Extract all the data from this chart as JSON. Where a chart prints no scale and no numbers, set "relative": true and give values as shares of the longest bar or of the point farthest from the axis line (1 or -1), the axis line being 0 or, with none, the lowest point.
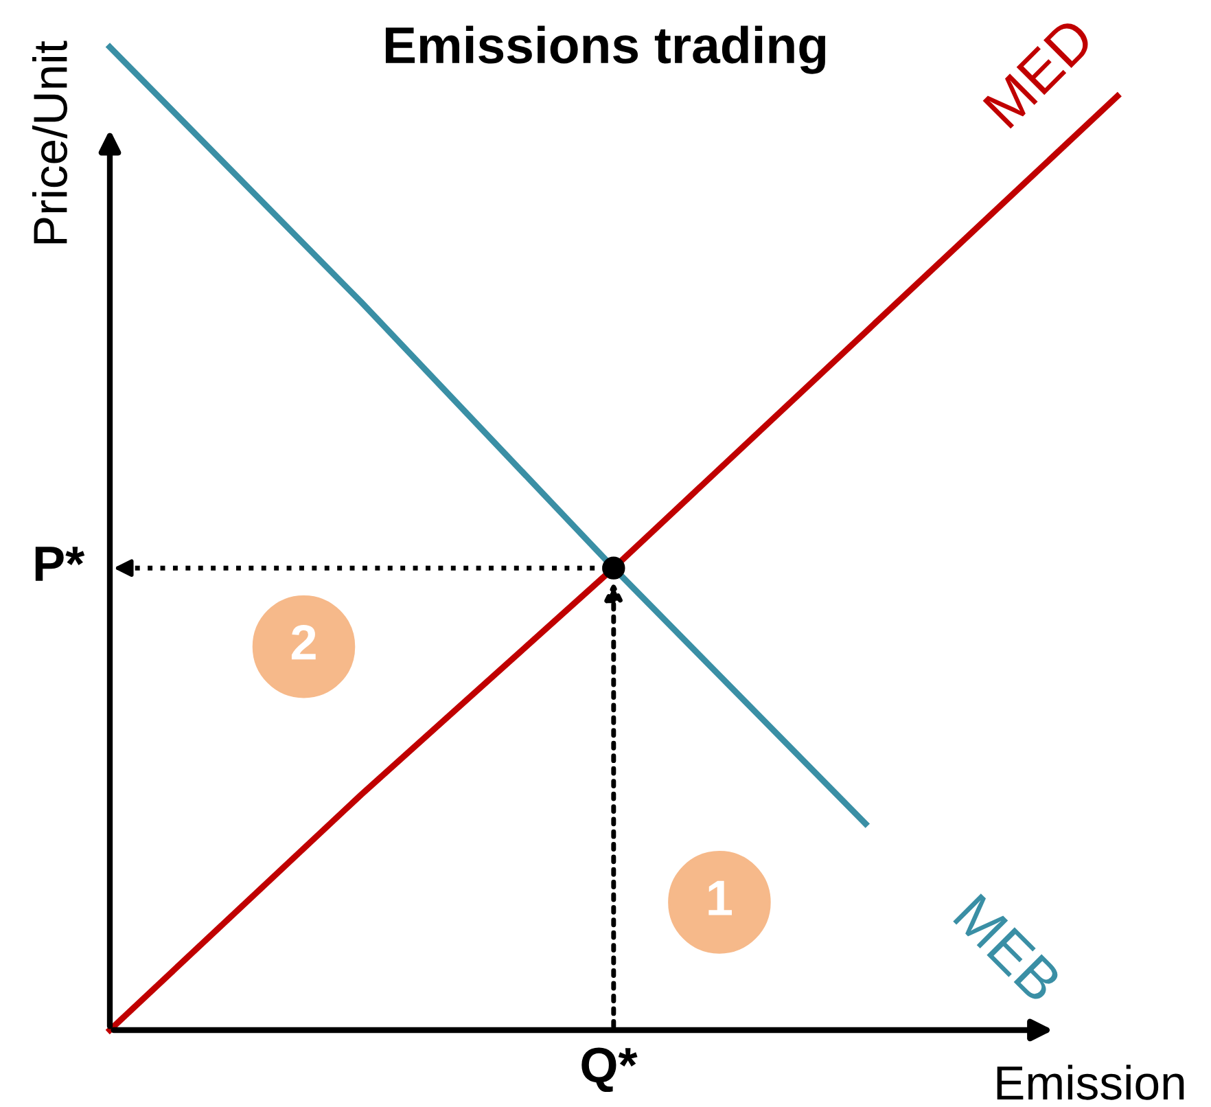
{
  "chart_data": {
    "type": "line",
    "title": "Emissions trading",
    "xlabel": "Emission",
    "ylabel": "Price/Unit",
    "relative": true,
    "tick_labels": false,
    "legend": false,
    "marker": "none",
    "line_style": "solid",
    "categories": [
      null,
      null,
      null,
      null,
      null
    ],
    "series": [
      {
        "name": "MEB",
        "color": "#3a8fa5",
        "values": [
          1,
          0.74,
          0.47,
          0.21,
          null
        ]
      },
      {
        "name": "MED",
        "color": "#c00000",
        "values": [
          0,
          0.24,
          0.47,
          0.71,
          0.95
        ]
      }
    ],
    "ref_lines": [
      {
        "axis": "y",
        "value": 0.47,
        "label": "P*",
        "line_style": "dotted",
        "color": "#000000"
      }
    ],
    "annotations": [
      "Q*",
      "1",
      "2"
    ]
  }
}
